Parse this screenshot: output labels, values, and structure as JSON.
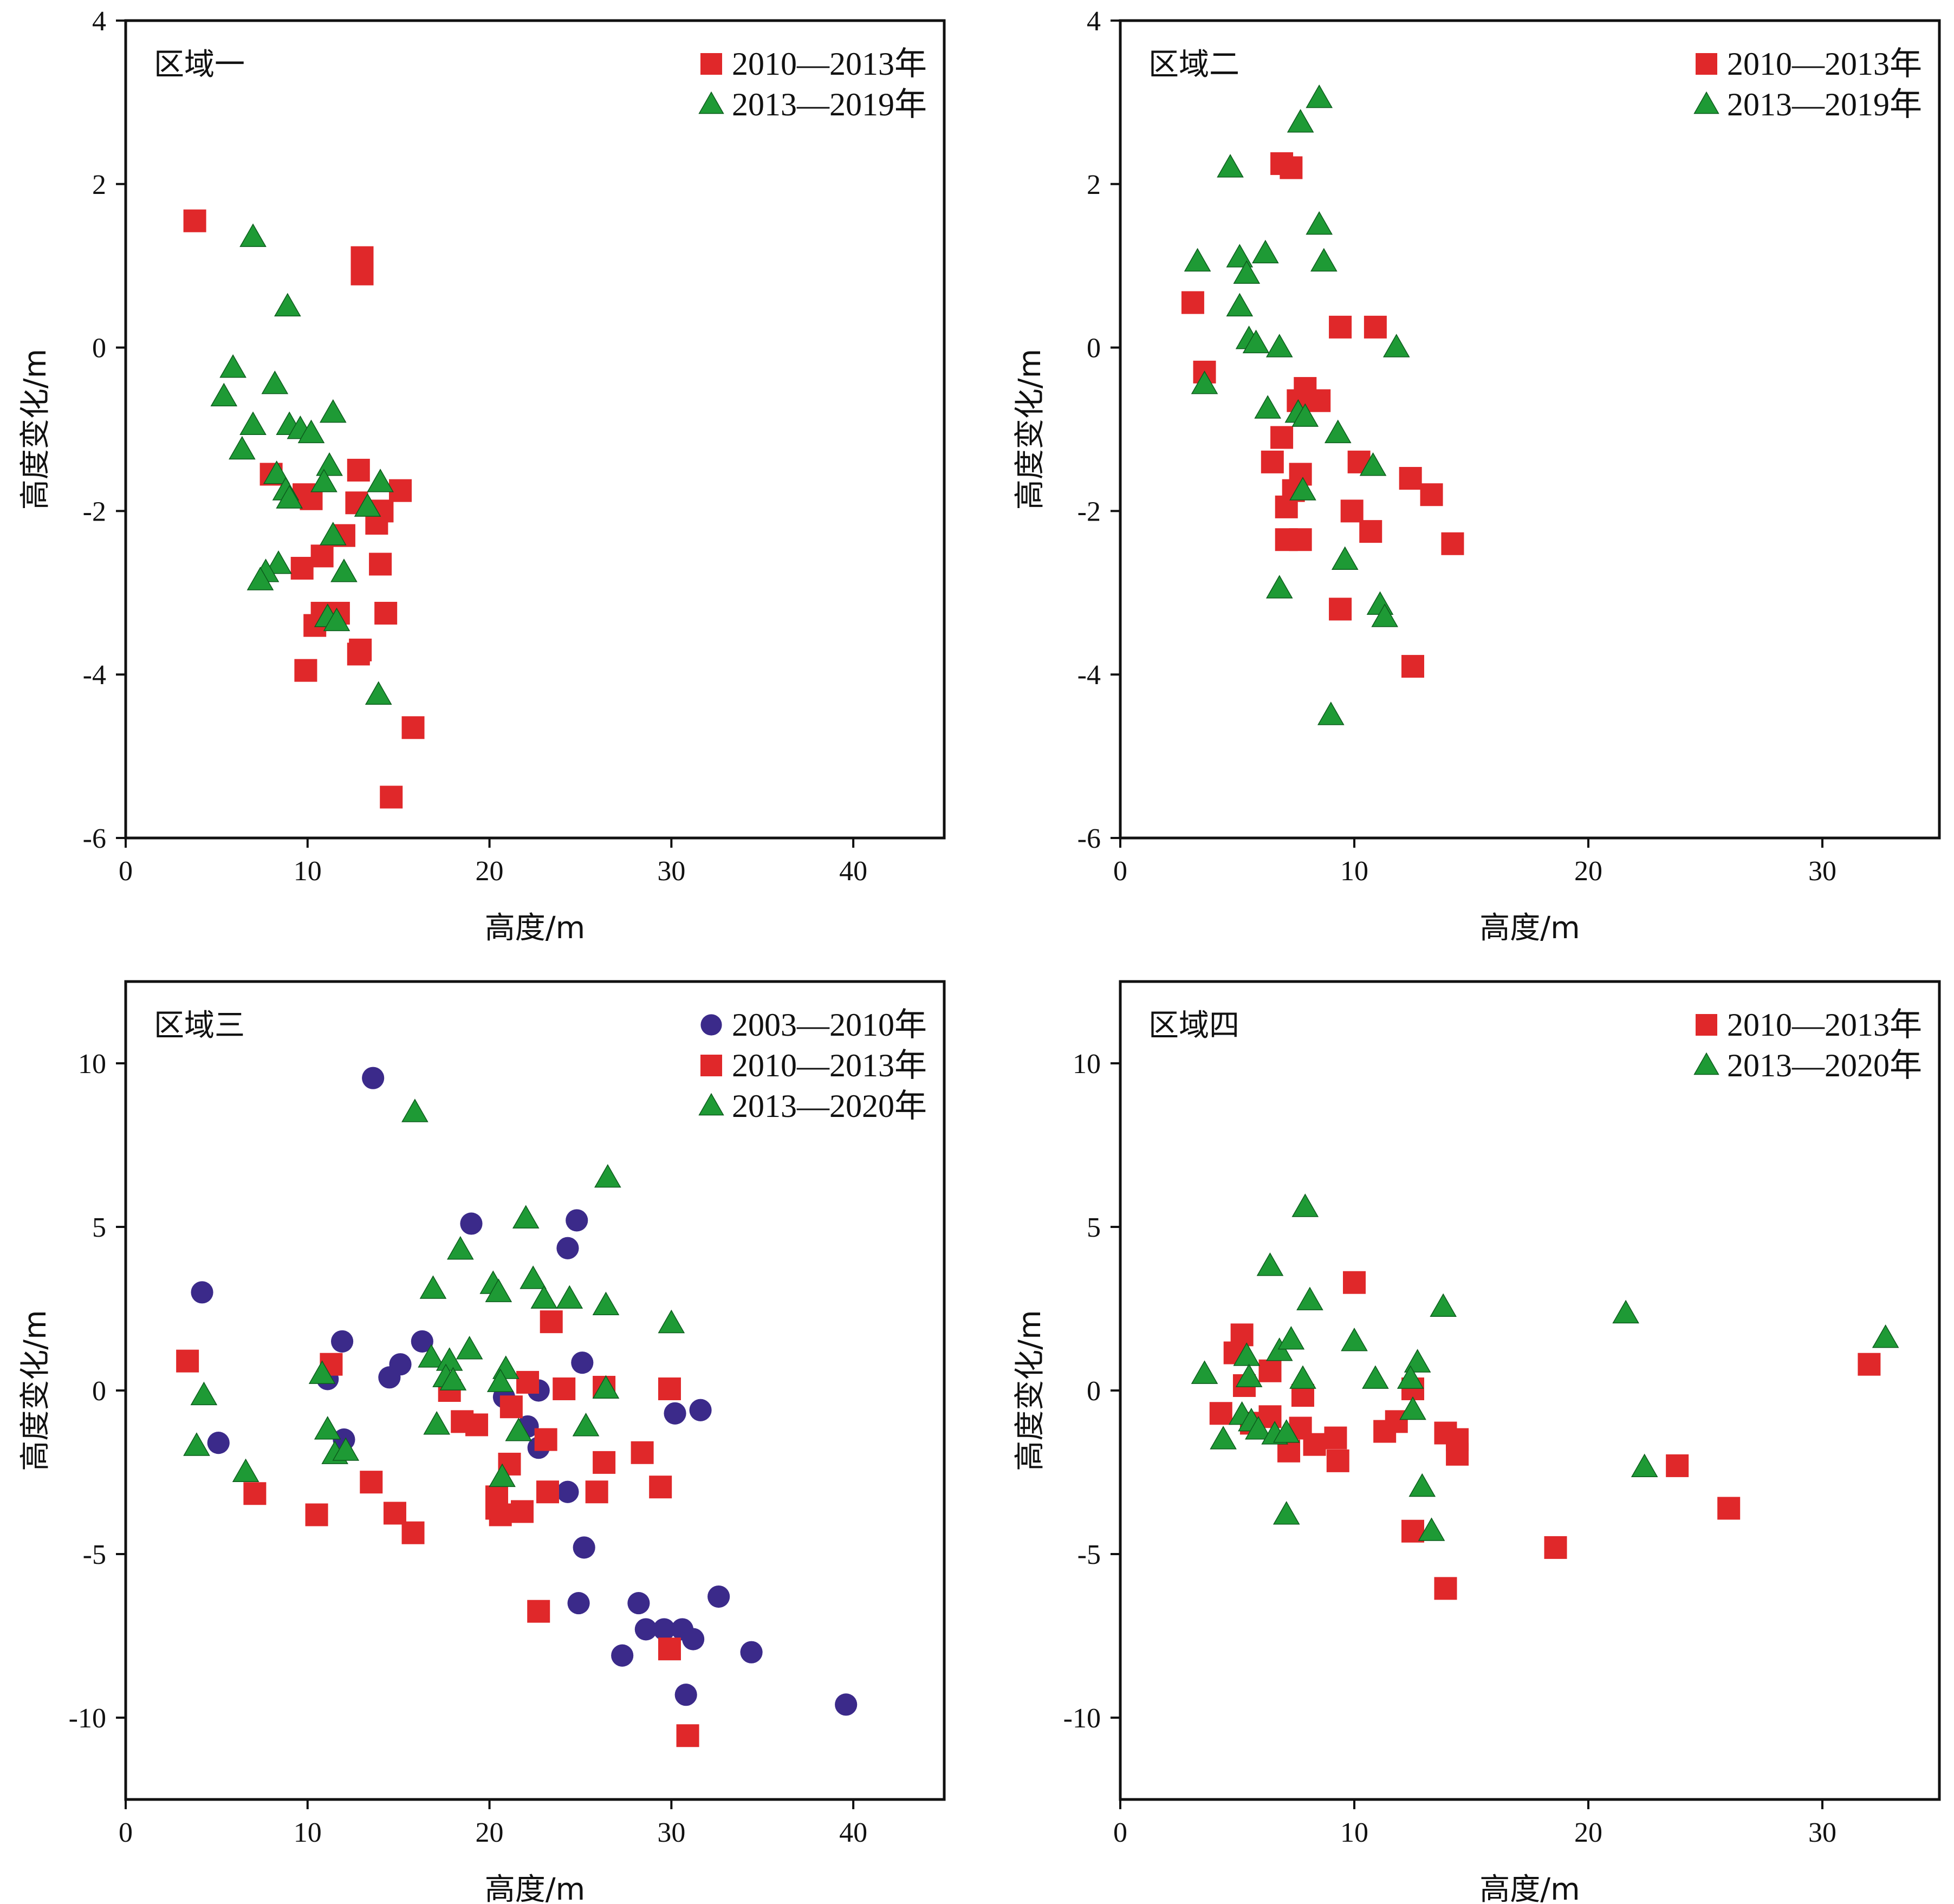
{
  "colors": {
    "square": "#e0282a",
    "triangle": "#1e9a35",
    "circle": "#3b2a8a",
    "axis": "#111111"
  },
  "chart_data": [
    {
      "type": "scatter",
      "title": "区域一",
      "xlabel": "高度/m",
      "ylabel": "高度变化/m",
      "xlim": [
        0,
        45
      ],
      "ylim": [
        -6,
        4
      ],
      "xticks": [
        0,
        10,
        20,
        30,
        40
      ],
      "yticks": [
        -6,
        -4,
        -2,
        0,
        2,
        4
      ],
      "legend_position": "top-right",
      "series": [
        {
          "name": "2010—2013年",
          "marker": "square",
          "points": [
            [
              3.8,
              1.55
            ],
            [
              13.0,
              1.1
            ],
            [
              13.0,
              0.9
            ],
            [
              8.0,
              -1.55
            ],
            [
              10.2,
              -1.85
            ],
            [
              9.8,
              -1.8
            ],
            [
              12.8,
              -1.5
            ],
            [
              15.1,
              -1.75
            ],
            [
              12.7,
              -1.9
            ],
            [
              13.8,
              -2.15
            ],
            [
              14.1,
              -2.0
            ],
            [
              12.0,
              -2.3
            ],
            [
              9.7,
              -2.7
            ],
            [
              10.8,
              -2.55
            ],
            [
              14.0,
              -2.65
            ],
            [
              10.8,
              -3.25
            ],
            [
              11.7,
              -3.25
            ],
            [
              10.4,
              -3.4
            ],
            [
              12.8,
              -3.75
            ],
            [
              12.9,
              -3.7
            ],
            [
              14.3,
              -3.25
            ],
            [
              9.9,
              -3.95
            ],
            [
              15.8,
              -4.65
            ],
            [
              14.6,
              -5.5
            ]
          ]
        },
        {
          "name": "2013—2019年",
          "marker": "triangle",
          "points": [
            [
              7.0,
              1.35
            ],
            [
              8.9,
              0.5
            ],
            [
              5.9,
              -0.25
            ],
            [
              5.4,
              -0.6
            ],
            [
              8.2,
              -0.45
            ],
            [
              7.0,
              -0.95
            ],
            [
              6.4,
              -1.25
            ],
            [
              9.0,
              -0.95
            ],
            [
              9.6,
              -1.0
            ],
            [
              10.2,
              -1.05
            ],
            [
              11.4,
              -0.8
            ],
            [
              11.2,
              -1.45
            ],
            [
              10.9,
              -1.65
            ],
            [
              8.3,
              -1.55
            ],
            [
              8.8,
              -1.75
            ],
            [
              9.0,
              -1.85
            ],
            [
              14.0,
              -1.65
            ],
            [
              13.3,
              -1.95
            ],
            [
              11.4,
              -2.3
            ],
            [
              12.0,
              -2.75
            ],
            [
              8.4,
              -2.65
            ],
            [
              7.7,
              -2.75
            ],
            [
              7.4,
              -2.85
            ],
            [
              11.1,
              -3.3
            ],
            [
              11.6,
              -3.35
            ],
            [
              13.9,
              -4.25
            ]
          ]
        }
      ]
    },
    {
      "type": "scatter",
      "title": "区域二",
      "xlabel": "高度/m",
      "ylabel": "高度变化/m",
      "xlim": [
        0,
        35
      ],
      "ylim": [
        -6,
        4
      ],
      "xticks": [
        0,
        10,
        20,
        30
      ],
      "yticks": [
        -6,
        -4,
        -2,
        0,
        2,
        4
      ],
      "legend_position": "top-right",
      "series": [
        {
          "name": "2010—2013年",
          "marker": "square",
          "points": [
            [
              6.9,
              2.25
            ],
            [
              7.3,
              2.2
            ],
            [
              3.1,
              0.55
            ],
            [
              3.6,
              -0.3
            ],
            [
              9.4,
              0.25
            ],
            [
              10.9,
              0.25
            ],
            [
              7.9,
              -0.5
            ],
            [
              7.6,
              -0.65
            ],
            [
              8.5,
              -0.65
            ],
            [
              6.9,
              -1.1
            ],
            [
              6.5,
              -1.4
            ],
            [
              10.2,
              -1.4
            ],
            [
              7.7,
              -1.55
            ],
            [
              7.4,
              -1.75
            ],
            [
              7.1,
              -1.95
            ],
            [
              12.4,
              -1.6
            ],
            [
              13.3,
              -1.8
            ],
            [
              9.9,
              -2.0
            ],
            [
              10.7,
              -2.25
            ],
            [
              7.1,
              -2.35
            ],
            [
              7.7,
              -2.35
            ],
            [
              14.2,
              -2.4
            ],
            [
              9.4,
              -3.2
            ],
            [
              12.5,
              -3.9
            ]
          ]
        },
        {
          "name": "2013—2019年",
          "marker": "triangle",
          "points": [
            [
              8.5,
              3.05
            ],
            [
              7.7,
              2.75
            ],
            [
              4.7,
              2.2
            ],
            [
              3.3,
              1.05
            ],
            [
              5.1,
              1.1
            ],
            [
              6.2,
              1.15
            ],
            [
              8.5,
              1.5
            ],
            [
              8.7,
              1.05
            ],
            [
              5.4,
              0.9
            ],
            [
              5.1,
              0.5
            ],
            [
              5.5,
              0.1
            ],
            [
              5.8,
              0.05
            ],
            [
              6.8,
              0.0
            ],
            [
              11.8,
              0.0
            ],
            [
              3.6,
              -0.45
            ],
            [
              6.3,
              -0.75
            ],
            [
              7.6,
              -0.8
            ],
            [
              7.9,
              -0.85
            ],
            [
              9.3,
              -1.05
            ],
            [
              10.8,
              -1.45
            ],
            [
              7.8,
              -1.75
            ],
            [
              9.6,
              -2.6
            ],
            [
              6.8,
              -2.95
            ],
            [
              11.1,
              -3.15
            ],
            [
              11.3,
              -3.3
            ],
            [
              9.0,
              -4.5
            ]
          ]
        }
      ]
    },
    {
      "type": "scatter",
      "title": "区域三",
      "xlabel": "高度/m",
      "ylabel": "高度变化/m",
      "xlim": [
        0,
        45
      ],
      "ylim": [
        -12.5,
        12.5
      ],
      "xticks": [
        0,
        10,
        20,
        30,
        40
      ],
      "yticks": [
        -10,
        -5,
        0,
        5,
        10
      ],
      "legend_position": "top-right",
      "series": [
        {
          "name": "2003—2010年",
          "marker": "circle",
          "points": [
            [
              13.6,
              9.55
            ],
            [
              4.2,
              3.0
            ],
            [
              19.0,
              5.1
            ],
            [
              24.8,
              5.2
            ],
            [
              24.3,
              4.35
            ],
            [
              11.9,
              1.5
            ],
            [
              16.3,
              1.5
            ],
            [
              15.1,
              0.8
            ],
            [
              14.5,
              0.4
            ],
            [
              11.1,
              0.35
            ],
            [
              25.1,
              0.85
            ],
            [
              20.8,
              -0.2
            ],
            [
              22.7,
              0.0
            ],
            [
              22.1,
              -1.1
            ],
            [
              12.0,
              -1.5
            ],
            [
              22.7,
              -1.75
            ],
            [
              5.1,
              -1.6
            ],
            [
              30.2,
              -0.7
            ],
            [
              31.6,
              -0.6
            ],
            [
              24.3,
              -3.1
            ],
            [
              25.2,
              -4.8
            ],
            [
              24.9,
              -6.5
            ],
            [
              28.2,
              -6.5
            ],
            [
              28.6,
              -7.3
            ],
            [
              29.6,
              -7.3
            ],
            [
              30.6,
              -7.3
            ],
            [
              31.2,
              -7.6
            ],
            [
              32.6,
              -6.3
            ],
            [
              27.3,
              -8.1
            ],
            [
              34.4,
              -8.0
            ],
            [
              30.8,
              -9.3
            ],
            [
              39.6,
              -9.6
            ]
          ]
        },
        {
          "name": "2010—2013年",
          "marker": "square",
          "points": [
            [
              3.4,
              0.9
            ],
            [
              11.3,
              0.8
            ],
            [
              23.4,
              2.1
            ],
            [
              22.1,
              0.25
            ],
            [
              24.1,
              0.05
            ],
            [
              26.3,
              0.1
            ],
            [
              29.9,
              0.05
            ],
            [
              17.8,
              0.0
            ],
            [
              21.2,
              -0.5
            ],
            [
              18.5,
              -0.95
            ],
            [
              19.3,
              -1.05
            ],
            [
              23.1,
              -1.5
            ],
            [
              21.1,
              -2.25
            ],
            [
              26.3,
              -2.2
            ],
            [
              28.4,
              -1.9
            ],
            [
              7.1,
              -3.15
            ],
            [
              13.5,
              -2.8
            ],
            [
              20.4,
              -3.25
            ],
            [
              20.4,
              -3.6
            ],
            [
              20.6,
              -3.8
            ],
            [
              21.8,
              -3.7
            ],
            [
              23.2,
              -3.1
            ],
            [
              25.9,
              -3.1
            ],
            [
              29.4,
              -2.95
            ],
            [
              10.5,
              -3.8
            ],
            [
              14.8,
              -3.75
            ],
            [
              15.8,
              -4.35
            ],
            [
              22.7,
              -6.75
            ],
            [
              29.9,
              -7.9
            ],
            [
              30.9,
              -10.55
            ]
          ]
        },
        {
          "name": "2013—2020年",
          "marker": "triangle",
          "points": [
            [
              15.9,
              8.5
            ],
            [
              26.5,
              6.5
            ],
            [
              22.0,
              5.25
            ],
            [
              18.4,
              4.3
            ],
            [
              16.9,
              3.1
            ],
            [
              20.2,
              3.25
            ],
            [
              20.5,
              3.0
            ],
            [
              22.4,
              3.4
            ],
            [
              23.0,
              2.8
            ],
            [
              24.4,
              2.8
            ],
            [
              26.4,
              2.6
            ],
            [
              30.0,
              2.05
            ],
            [
              16.8,
              1.0
            ],
            [
              17.8,
              0.9
            ],
            [
              18.9,
              1.25
            ],
            [
              20.9,
              0.65
            ],
            [
              17.6,
              0.4
            ],
            [
              18.0,
              0.3
            ],
            [
              20.6,
              0.25
            ],
            [
              10.8,
              0.5
            ],
            [
              26.4,
              0.05
            ],
            [
              4.3,
              -0.15
            ],
            [
              3.9,
              -1.7
            ],
            [
              11.1,
              -1.2
            ],
            [
              11.5,
              -1.95
            ],
            [
              12.1,
              -1.85
            ],
            [
              17.1,
              -1.05
            ],
            [
              21.6,
              -1.25
            ],
            [
              25.3,
              -1.1
            ],
            [
              6.6,
              -2.5
            ],
            [
              20.7,
              -2.65
            ]
          ]
        }
      ]
    },
    {
      "type": "scatter",
      "title": "区域四",
      "xlabel": "高度/m",
      "ylabel": "高度变化/m",
      "xlim": [
        0,
        35
      ],
      "ylim": [
        -12.5,
        12.5
      ],
      "xticks": [
        0,
        10,
        20,
        30
      ],
      "yticks": [
        -10,
        -5,
        0,
        5,
        10
      ],
      "legend_position": "top-right",
      "series": [
        {
          "name": "2010—2013年",
          "marker": "square",
          "points": [
            [
              5.2,
              1.7
            ],
            [
              4.9,
              1.15
            ],
            [
              10.0,
              3.3
            ],
            [
              6.4,
              0.6
            ],
            [
              5.3,
              0.15
            ],
            [
              7.8,
              -0.15
            ],
            [
              12.5,
              0.05
            ],
            [
              4.3,
              -0.7
            ],
            [
              5.6,
              -1.0
            ],
            [
              6.4,
              -0.8
            ],
            [
              7.7,
              -1.15
            ],
            [
              9.2,
              -1.45
            ],
            [
              11.8,
              -0.95
            ],
            [
              11.3,
              -1.25
            ],
            [
              7.2,
              -1.85
            ],
            [
              8.3,
              -1.65
            ],
            [
              9.3,
              -2.15
            ],
            [
              13.9,
              -1.3
            ],
            [
              14.4,
              -1.5
            ],
            [
              14.4,
              -1.95
            ],
            [
              12.5,
              -4.3
            ],
            [
              13.9,
              -6.05
            ],
            [
              18.6,
              -4.8
            ],
            [
              23.8,
              -2.3
            ],
            [
              26.0,
              -3.6
            ],
            [
              32.0,
              0.8
            ]
          ]
        },
        {
          "name": "2013—2020年",
          "marker": "triangle",
          "points": [
            [
              7.9,
              5.6
            ],
            [
              6.4,
              3.8
            ],
            [
              8.1,
              2.75
            ],
            [
              3.6,
              0.5
            ],
            [
              5.4,
              1.05
            ],
            [
              6.8,
              1.2
            ],
            [
              7.3,
              1.55
            ],
            [
              7.8,
              0.35
            ],
            [
              10.0,
              1.5
            ],
            [
              10.9,
              0.35
            ],
            [
              12.7,
              0.85
            ],
            [
              12.4,
              0.35
            ],
            [
              12.5,
              -0.6
            ],
            [
              13.8,
              2.55
            ],
            [
              21.6,
              2.35
            ],
            [
              32.7,
              1.6
            ],
            [
              5.5,
              0.4
            ],
            [
              5.2,
              -0.75
            ],
            [
              5.6,
              -0.95
            ],
            [
              5.9,
              -1.2
            ],
            [
              6.6,
              -1.35
            ],
            [
              7.1,
              -1.3
            ],
            [
              4.4,
              -1.5
            ],
            [
              12.9,
              -2.95
            ],
            [
              13.3,
              -4.3
            ],
            [
              7.1,
              -3.8
            ],
            [
              22.4,
              -2.35
            ]
          ]
        }
      ]
    }
  ]
}
